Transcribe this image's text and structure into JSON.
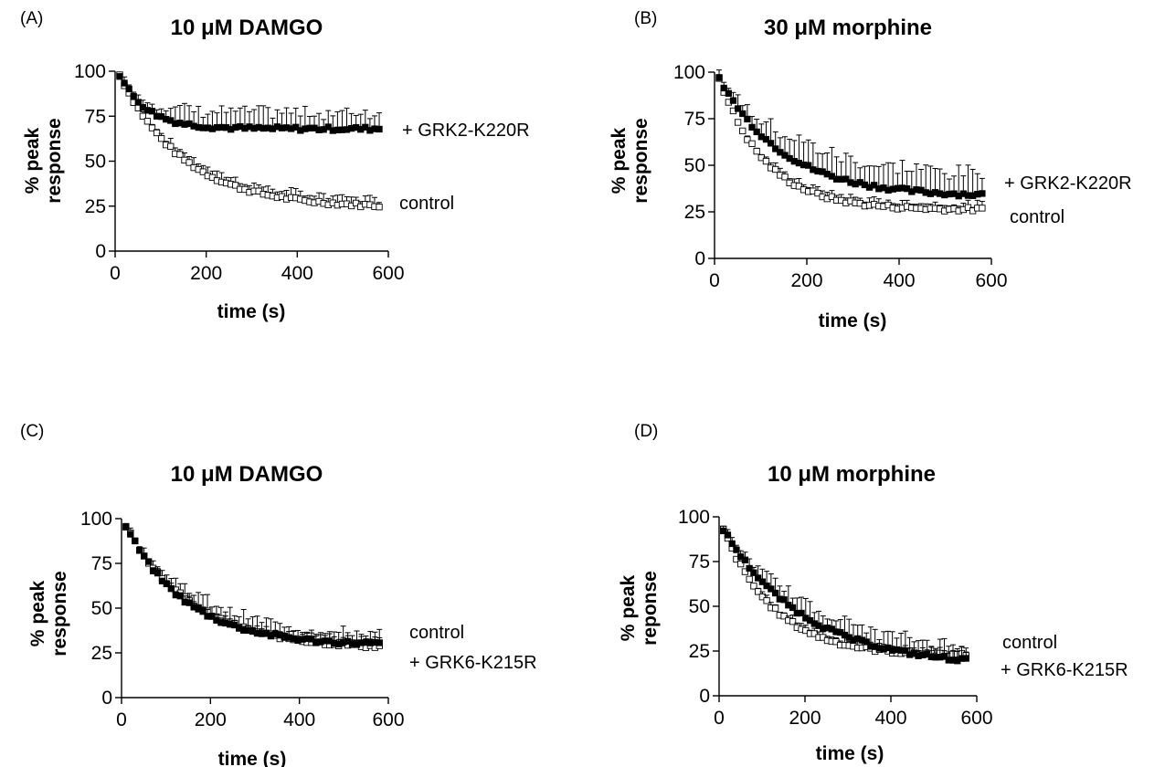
{
  "chart_data": [
    {
      "type": "scatter",
      "panel": "(A)",
      "title": "10 μM DAMGO",
      "xlabel": "time (s)",
      "ylabel": [
        "% peak",
        "response"
      ],
      "xlim": [
        0,
        600
      ],
      "ylim": [
        0,
        100
      ],
      "xticks": [
        "0",
        "200",
        "400",
        "600"
      ],
      "yticks": [
        "0",
        "25",
        "50",
        "75",
        "100"
      ],
      "legend_placement": "right",
      "series": [
        {
          "name": "+ GRK2-K220R",
          "fill": "black",
          "error_bars": "up",
          "tau": 60,
          "plateau": 68,
          "start": 98,
          "err": 9
        },
        {
          "name": "control",
          "fill": "white",
          "error_bars": "up",
          "tau": 140,
          "plateau": 24,
          "start": 98,
          "err": 4
        }
      ]
    },
    {
      "type": "scatter",
      "panel": "(B)",
      "title": "30 μM morphine",
      "xlabel": "time (s)",
      "ylabel": [
        "% peak",
        "response"
      ],
      "xlim": [
        0,
        600
      ],
      "ylim": [
        0,
        100
      ],
      "xticks": [
        "0",
        "200",
        "400",
        "600"
      ],
      "yticks": [
        "0",
        "25",
        "50",
        "75",
        "100"
      ],
      "legend_placement": "right",
      "series": [
        {
          "name": "+ GRK2-K220R",
          "fill": "black",
          "error_bars": "up",
          "tau": 140,
          "plateau": 33,
          "start": 97,
          "err": 12
        },
        {
          "name": "control",
          "fill": "white",
          "error_bars": "up",
          "tau": 100,
          "plateau": 26,
          "start": 97,
          "err": 3
        }
      ]
    },
    {
      "type": "scatter",
      "panel": "(C)",
      "title": "10 μM DAMGO",
      "xlabel": "time (s)",
      "ylabel": [
        "% peak",
        "response"
      ],
      "xlim": [
        0,
        600
      ],
      "ylim": [
        0,
        100
      ],
      "xticks": [
        "0",
        "200",
        "400",
        "600"
      ],
      "yticks": [
        "0",
        "25",
        "50",
        "75",
        "100"
      ],
      "legend_placement": "right",
      "series": [
        {
          "name": "control",
          "fill": "white",
          "error_bars": "up",
          "tau": 150,
          "plateau": 27,
          "start": 96,
          "err": 7
        },
        {
          "name": "+ GRK6-K215R",
          "fill": "black",
          "error_bars": "up",
          "tau": 135,
          "plateau": 29,
          "start": 96,
          "err": 3
        }
      ]
    },
    {
      "type": "scatter",
      "panel": "(D)",
      "title": "10 μM morphine",
      "xlabel": "time (s)",
      "ylabel": [
        "% peak",
        "reponse"
      ],
      "xlim": [
        0,
        600
      ],
      "ylim": [
        0,
        100
      ],
      "xticks": [
        "0",
        "200",
        "400",
        "600"
      ],
      "yticks": [
        "0",
        "25",
        "50",
        "75",
        "100"
      ],
      "legend_placement": "right",
      "series": [
        {
          "name": "control",
          "fill": "white",
          "error_bars": "up",
          "tau": 120,
          "plateau": 22,
          "start": 93,
          "err": 3
        },
        {
          "name": "+ GRK6-K215R",
          "fill": "black",
          "error_bars": "up",
          "tau": 190,
          "plateau": 16,
          "start": 93,
          "err": 8
        }
      ]
    }
  ]
}
